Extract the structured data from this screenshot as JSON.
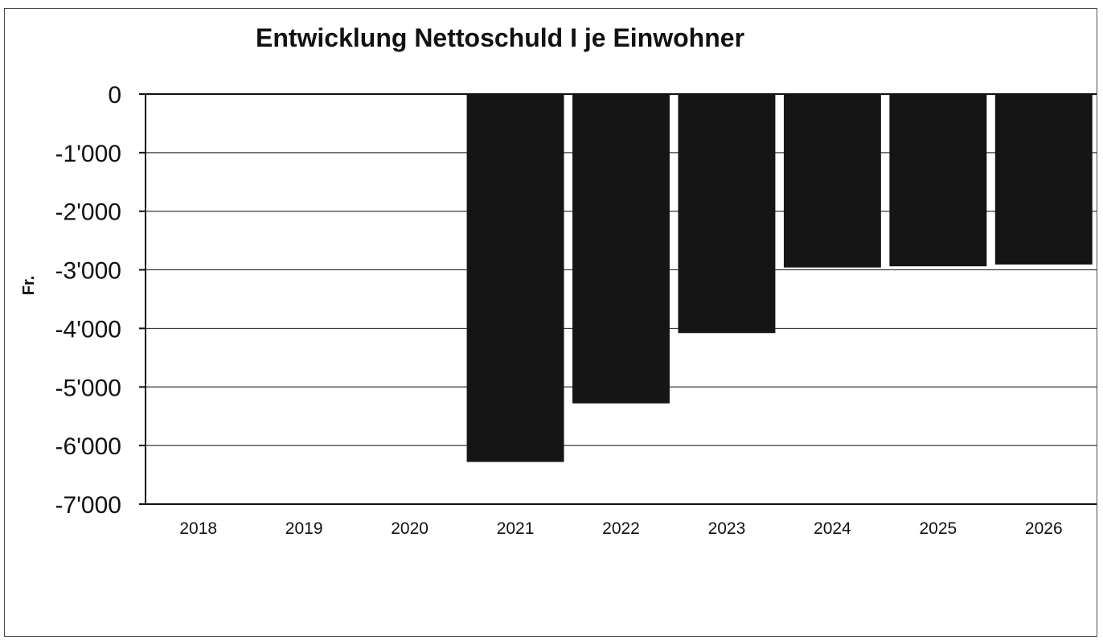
{
  "chart_data": {
    "type": "bar",
    "title": "Entwicklung Nettoschuld I je Einwohner",
    "xlabel": "",
    "ylabel": "Fr.",
    "categories": [
      "2018",
      "2019",
      "2020",
      "2021",
      "2022",
      "2023",
      "2024",
      "2025",
      "2026"
    ],
    "values": [
      0,
      0,
      0,
      -6280,
      -5280,
      -4080,
      -2960,
      -2940,
      -2910
    ],
    "ylim": [
      -7000,
      0
    ],
    "yticks": [
      0,
      -1000,
      -2000,
      -3000,
      -4000,
      -5000,
      -6000,
      -7000
    ],
    "ytick_labels": [
      "0",
      "-1'000",
      "-2'000",
      "-3'000",
      "-4'000",
      "-5'000",
      "-6'000",
      "-7'000"
    ],
    "grid": true,
    "legend": "none",
    "bar_color": "#151515"
  }
}
